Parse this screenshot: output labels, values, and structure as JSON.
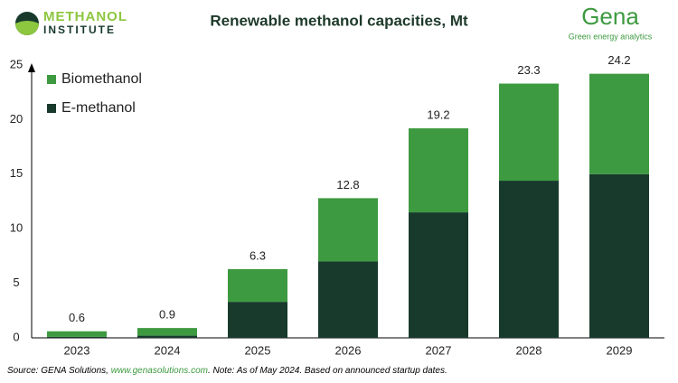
{
  "chart_data": {
    "type": "stacked-bar",
    "title": "Renewable methanol capacities, Mt",
    "categories": [
      "2023",
      "2024",
      "2025",
      "2026",
      "2027",
      "2028",
      "2029"
    ],
    "series": [
      {
        "name": "Biomethanol",
        "color": "#3d9a40",
        "values": [
          0.5,
          0.7,
          3.0,
          5.8,
          7.7,
          8.9,
          9.2
        ]
      },
      {
        "name": "E-methanol",
        "color": "#173a2c",
        "values": [
          0.1,
          0.2,
          3.3,
          7.0,
          11.5,
          14.4,
          15.0
        ]
      }
    ],
    "total_labels": [
      0.6,
      0.9,
      6.3,
      12.8,
      19.2,
      23.3,
      24.2
    ],
    "ylim": [
      0,
      25
    ],
    "yticks": [
      0,
      5,
      10,
      15,
      20,
      25
    ],
    "grid": false,
    "legend": "top-left"
  },
  "logos": {
    "left_top": "METHANOL",
    "left_bottom": "INSTITUTE",
    "right_top": "Gena",
    "right_bottom": "Green energy analytics"
  },
  "source": {
    "prefix": "Source: GENA Solutions, ",
    "link": "www.genasolutions.com",
    "suffix": ". Note: As of May 2024. Based on announced startup dates."
  }
}
